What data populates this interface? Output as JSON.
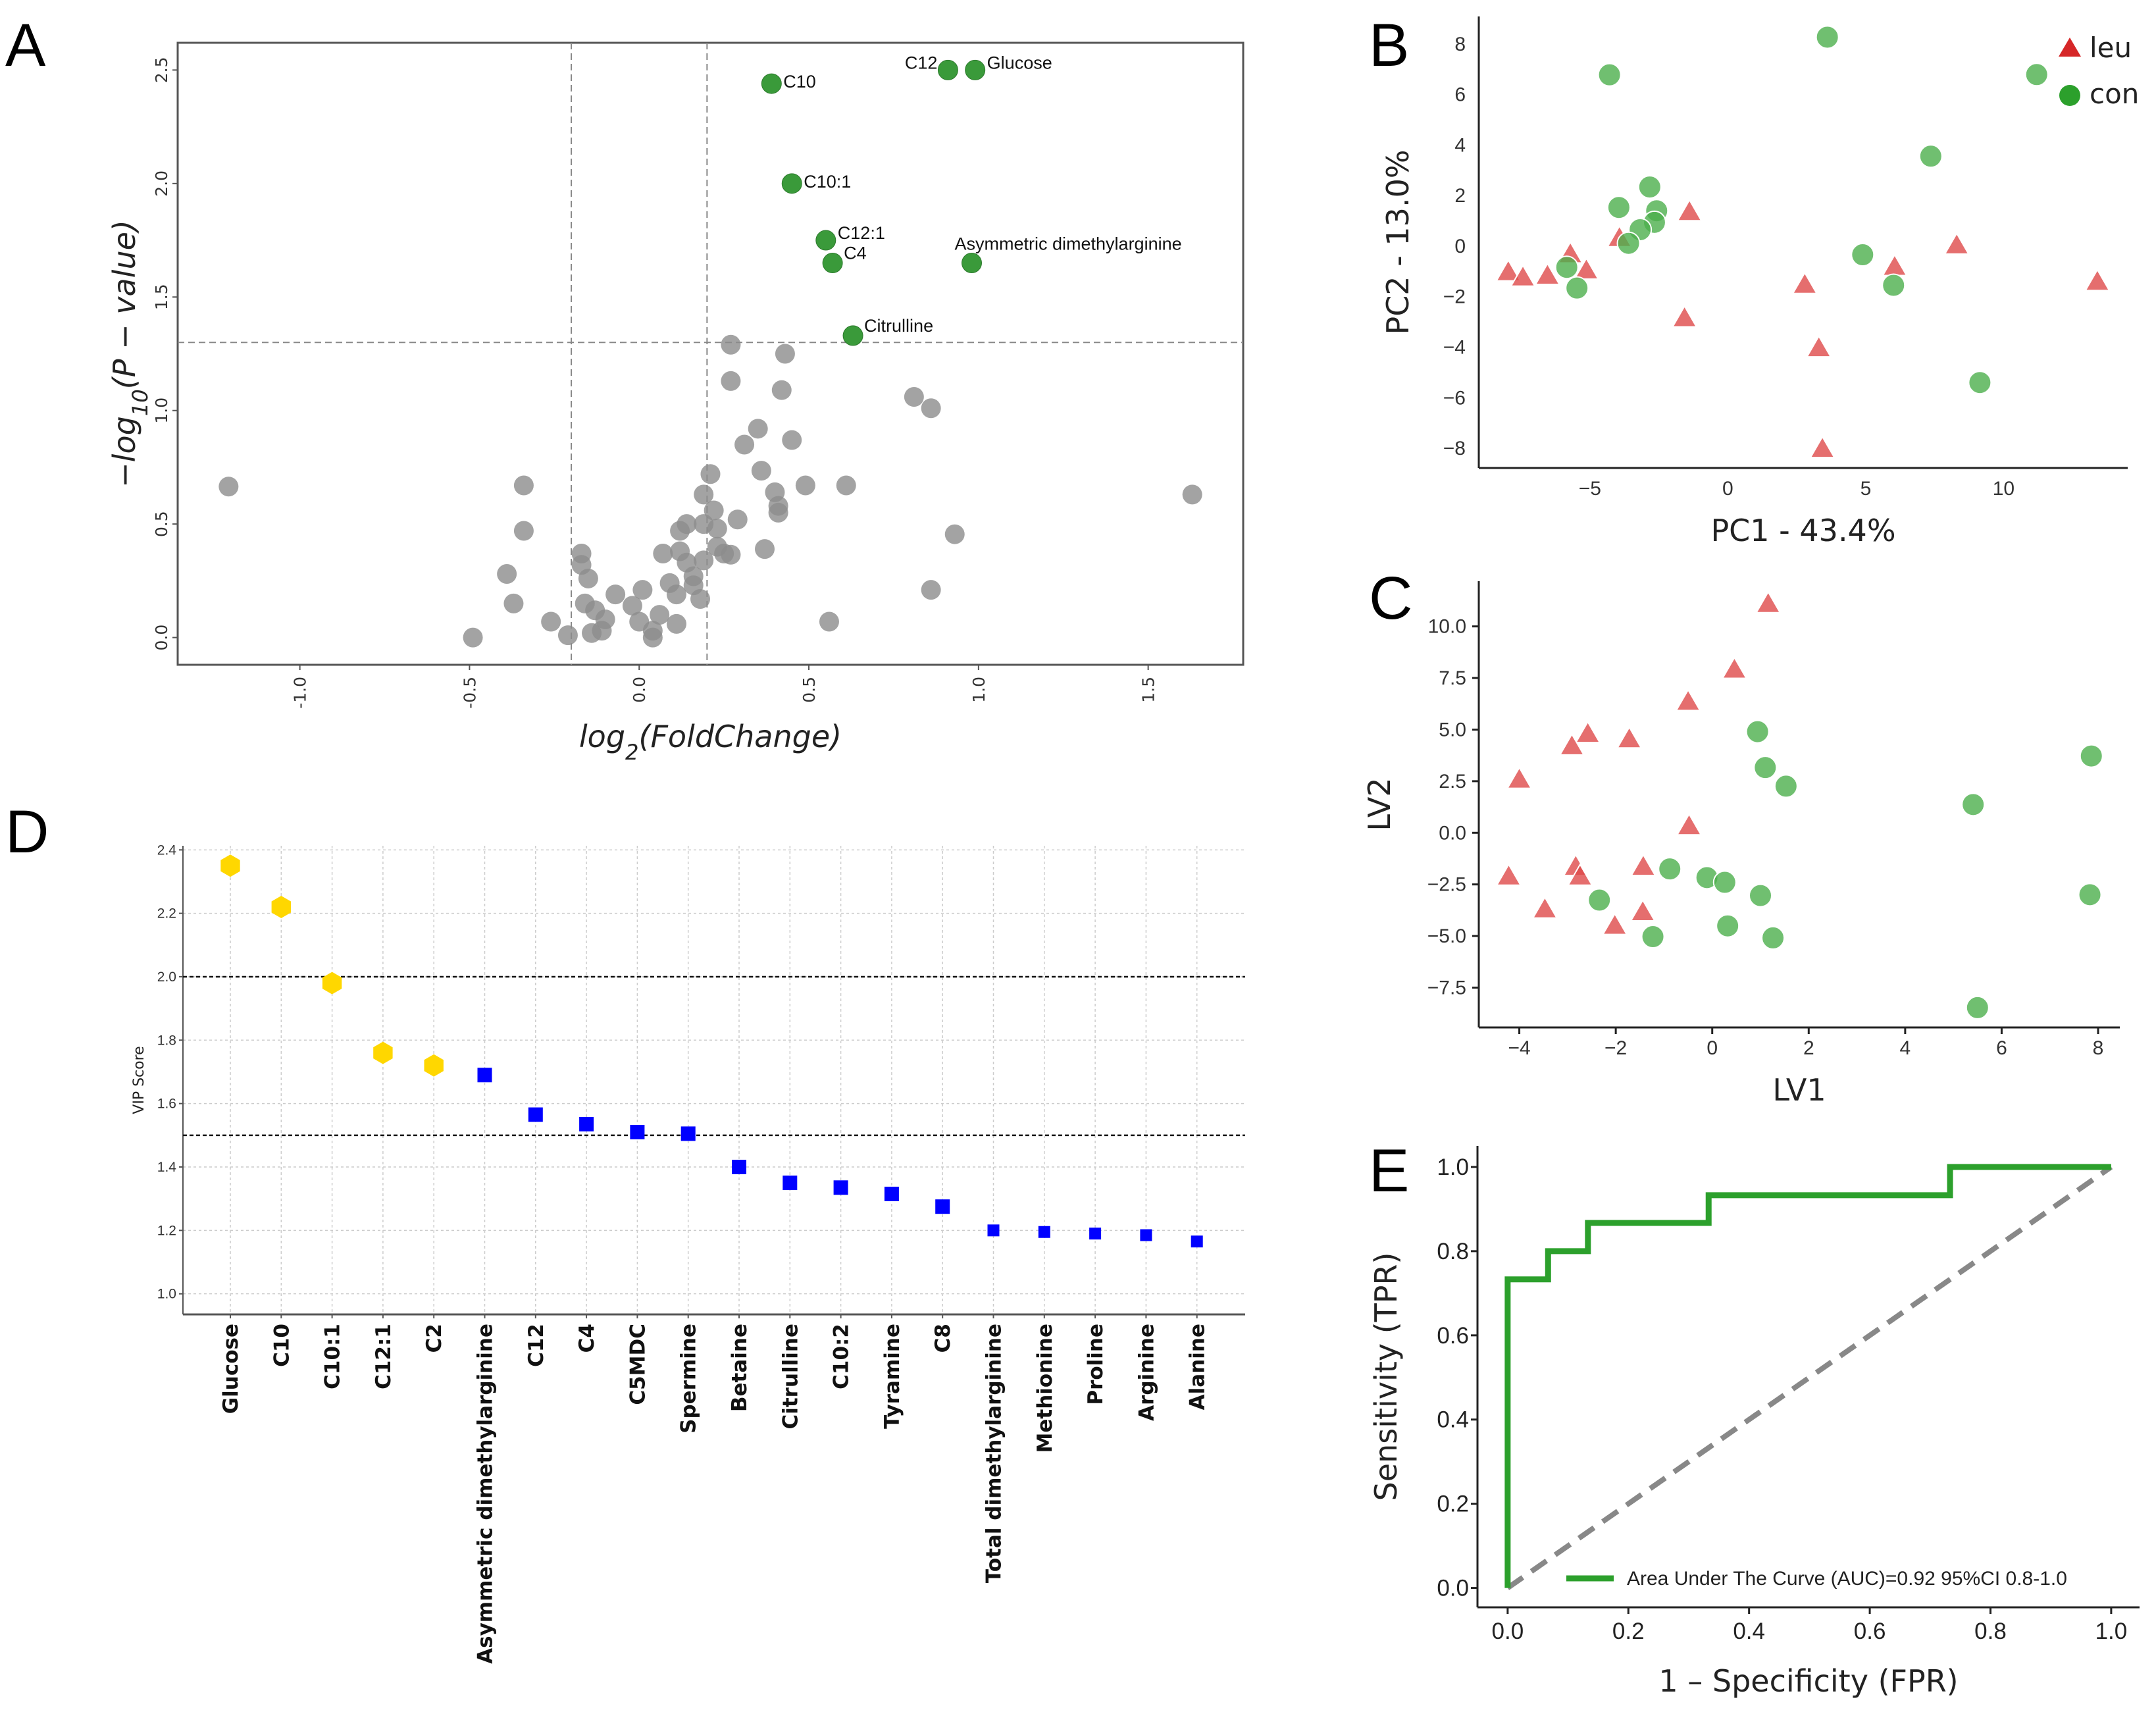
{
  "panel_labels": [
    "A",
    "B",
    "C",
    "D",
    "E"
  ],
  "chart_data": [
    {
      "panel": "A",
      "type": "scatter",
      "xlabel": {
        "base": "log",
        "sub": "2",
        "rest": "(FoldChange)"
      },
      "ylabel": {
        "base": "−log",
        "sub": "10",
        "rest": "(P − value)"
      },
      "xlim": [
        -1.36,
        1.78
      ],
      "ylim": [
        -0.12,
        2.62
      ],
      "xticks": [
        "-1.0",
        "-0.5",
        "0.0",
        "0.5",
        "1.0",
        "1.5"
      ],
      "yticks": [
        "0.0",
        "0.5",
        "1.0",
        "1.5",
        "2.0",
        "2.5"
      ],
      "thresholds": {
        "x": [
          -0.2,
          0.2
        ],
        "y": 1.3
      },
      "colors": {
        "significant": "#3a9a3a",
        "nonsignificant": "#8c8c8c"
      },
      "significant": [
        {
          "label": "C10",
          "x": 0.39,
          "y": 2.44
        },
        {
          "label": "C12",
          "x": 0.91,
          "y": 2.5
        },
        {
          "label": "Glucose",
          "x": 0.99,
          "y": 2.5
        },
        {
          "label": "C10:1",
          "x": 0.45,
          "y": 2.0
        },
        {
          "label": "C12:1",
          "x": 0.55,
          "y": 1.75
        },
        {
          "label": "C4",
          "x": 0.57,
          "y": 1.65
        },
        {
          "label": "Asymmetric dimethylarginine",
          "x": 0.98,
          "y": 1.65
        },
        {
          "label": "Citrulline",
          "x": 0.63,
          "y": 1.33
        }
      ],
      "nonsignificant": [
        [
          -1.21,
          0.665
        ],
        [
          -0.34,
          0.67
        ],
        [
          -0.34,
          0.47
        ],
        [
          -0.39,
          0.28
        ],
        [
          -0.37,
          0.15
        ],
        [
          -0.49,
          0.0
        ],
        [
          -0.26,
          0.07
        ],
        [
          -0.21,
          0.01
        ],
        [
          -0.17,
          0.37
        ],
        [
          -0.17,
          0.32
        ],
        [
          -0.15,
          0.26
        ],
        [
          -0.16,
          0.15
        ],
        [
          -0.13,
          0.12
        ],
        [
          -0.14,
          0.02
        ],
        [
          -0.11,
          0.03
        ],
        [
          -0.1,
          0.08
        ],
        [
          -0.07,
          0.19
        ],
        [
          -0.02,
          0.14
        ],
        [
          0.01,
          0.21
        ],
        [
          0.0,
          0.07
        ],
        [
          0.04,
          0.03
        ],
        [
          0.04,
          0.0
        ],
        [
          0.06,
          0.1
        ],
        [
          0.07,
          0.37
        ],
        [
          0.09,
          0.24
        ],
        [
          0.11,
          0.19
        ],
        [
          0.11,
          0.06
        ],
        [
          0.12,
          0.47
        ],
        [
          0.14,
          0.5
        ],
        [
          0.12,
          0.38
        ],
        [
          0.14,
          0.33
        ],
        [
          0.16,
          0.27
        ],
        [
          0.16,
          0.23
        ],
        [
          0.18,
          0.17
        ],
        [
          0.19,
          0.34
        ],
        [
          0.19,
          0.5
        ],
        [
          0.19,
          0.63
        ],
        [
          0.21,
          0.72
        ],
        [
          0.22,
          0.56
        ],
        [
          0.23,
          0.48
        ],
        [
          0.23,
          0.4
        ],
        [
          0.25,
          0.37
        ],
        [
          0.27,
          0.365
        ],
        [
          0.29,
          0.52
        ],
        [
          0.27,
          1.29
        ],
        [
          0.27,
          1.13
        ],
        [
          0.31,
          0.85
        ],
        [
          0.35,
          0.92
        ],
        [
          0.36,
          0.735
        ],
        [
          0.37,
          0.39
        ],
        [
          0.4,
          0.64
        ],
        [
          0.41,
          0.58
        ],
        [
          0.41,
          0.55
        ],
        [
          0.42,
          1.09
        ],
        [
          0.43,
          1.25
        ],
        [
          0.45,
          0.87
        ],
        [
          0.49,
          0.67
        ],
        [
          0.56,
          0.07
        ],
        [
          0.61,
          0.67
        ],
        [
          0.81,
          1.06
        ],
        [
          0.86,
          1.01
        ],
        [
          0.86,
          0.21
        ],
        [
          0.93,
          0.455
        ],
        [
          1.63,
          0.63
        ]
      ]
    },
    {
      "panel": "B",
      "type": "scatter",
      "xlabel": "PC1 - 43.4%",
      "ylabel": "PC2 - 13.0%",
      "xlim": [
        -9.03,
        14.5
      ],
      "ylim": [
        -8.78,
        9.09
      ],
      "xticks": [
        "-5",
        "0",
        "5",
        "10"
      ],
      "yticks": [
        "-8",
        "-6",
        "-4",
        "-2",
        "0",
        "2",
        "4",
        "6",
        "8"
      ],
      "legend": {
        "position": "top-right",
        "entries": [
          {
            "name": "leu",
            "marker": "triangle",
            "color": "#d62728"
          },
          {
            "name": "con",
            "marker": "circle",
            "color": "#2ca02c"
          }
        ]
      },
      "series": [
        {
          "name": "leu",
          "points": [
            [
              -7.96,
              -1.05
            ],
            [
              -7.43,
              -1.26
            ],
            [
              -6.54,
              -1.19
            ],
            [
              -5.71,
              -0.34
            ],
            [
              -5.13,
              -0.98
            ],
            [
              -3.93,
              0.3
            ],
            [
              -1.39,
              1.33
            ],
            [
              -1.57,
              -2.87
            ],
            [
              2.79,
              -1.55
            ],
            [
              3.3,
              -4.06
            ],
            [
              3.43,
              -8.04
            ],
            [
              6.05,
              -0.84
            ],
            [
              8.3,
              0.01
            ],
            [
              13.4,
              -1.43
            ]
          ]
        },
        {
          "name": "con",
          "points": [
            [
              -4.29,
              6.78
            ],
            [
              3.61,
              8.27
            ],
            [
              11.2,
              6.79
            ],
            [
              7.36,
              3.56
            ],
            [
              -2.83,
              2.34
            ],
            [
              -3.95,
              1.53
            ],
            [
              -2.58,
              1.4
            ],
            [
              -2.66,
              0.94
            ],
            [
              -3.18,
              0.65
            ],
            [
              -3.6,
              0.11
            ],
            [
              -5.84,
              -0.84
            ],
            [
              -5.47,
              -1.66
            ],
            [
              4.89,
              -0.34
            ],
            [
              6.01,
              -1.55
            ],
            [
              9.14,
              -5.4
            ]
          ]
        }
      ]
    },
    {
      "panel": "C",
      "type": "scatter",
      "xlabel": "LV1",
      "ylabel": "LV2",
      "xlim": [
        -4.84,
        8.45
      ],
      "ylim": [
        -9.43,
        12.19
      ],
      "xticks": [
        "-4",
        "-2",
        "0",
        "2",
        "4",
        "6",
        "8"
      ],
      "yticks": [
        "-7.5",
        "-5.0",
        "-2.5",
        "0.0",
        "2.5",
        "5.0",
        "7.5",
        "10.0"
      ],
      "series": [
        {
          "name": "leu",
          "points": [
            [
              1.16,
              11.06
            ],
            [
              0.46,
              7.88
            ],
            [
              -0.5,
              6.32
            ],
            [
              -2.58,
              4.77
            ],
            [
              -2.91,
              4.17
            ],
            [
              -1.72,
              4.51
            ],
            [
              -4.0,
              2.55
            ],
            [
              -0.48,
              0.3
            ],
            [
              -4.22,
              -2.14
            ],
            [
              -2.83,
              -1.67
            ],
            [
              -2.74,
              -2.14
            ],
            [
              -1.43,
              -1.67
            ],
            [
              -3.47,
              -3.73
            ],
            [
              -1.44,
              -3.87
            ],
            [
              -2.02,
              -4.53
            ]
          ]
        },
        {
          "name": "con",
          "points": [
            [
              0.94,
              4.9
            ],
            [
              1.1,
              3.16
            ],
            [
              1.53,
              2.26
            ],
            [
              7.86,
              3.72
            ],
            [
              5.41,
              1.37
            ],
            [
              -0.88,
              -1.75
            ],
            [
              -0.11,
              -2.17
            ],
            [
              0.26,
              -2.4
            ],
            [
              1.0,
              -3.04
            ],
            [
              -2.34,
              -3.26
            ],
            [
              -1.23,
              -5.03
            ],
            [
              0.32,
              -4.51
            ],
            [
              1.26,
              -5.09
            ],
            [
              7.83,
              -3.0
            ],
            [
              5.5,
              -8.47
            ]
          ]
        }
      ]
    },
    {
      "panel": "D",
      "type": "scatter",
      "ylabel": "VIP Score",
      "ylim": [
        0.935,
        2.413
      ],
      "yticks": [
        "1.0",
        "1.2",
        "1.4",
        "1.6",
        "1.8",
        "2.0",
        "2.2",
        "2.4"
      ],
      "thresholds": [
        2.0,
        1.5
      ],
      "grid": true,
      "colors": {
        "high": "#ffd700",
        "other": "#0000ff"
      },
      "categories": [
        "Glucose",
        "C10",
        "C10:1",
        "C12:1",
        "C2",
        "Asymmetric dimethylarginine",
        "C12",
        "C4",
        "C5MDC",
        "Spermine",
        "Betaine",
        "Citrulline",
        "C10:2",
        "Tyramine",
        "C8",
        "Total dimethylarginine",
        "Methionine",
        "Proline",
        "Arginine",
        "Alanine"
      ],
      "values": [
        2.35,
        2.22,
        1.98,
        1.76,
        1.72,
        1.69,
        1.565,
        1.535,
        1.51,
        1.505,
        1.4,
        1.35,
        1.335,
        1.315,
        1.275,
        1.2,
        1.195,
        1.19,
        1.185,
        1.165
      ],
      "markers": [
        "hexagon",
        "hexagon",
        "hexagon",
        "hexagon",
        "hexagon",
        "square",
        "square",
        "square",
        "square",
        "square",
        "square",
        "square",
        "square",
        "square",
        "square",
        "square",
        "square",
        "square",
        "square",
        "square"
      ]
    },
    {
      "panel": "E",
      "type": "line",
      "xlabel": "1 – Specificity (FPR)",
      "ylabel": "Sensitivity (TPR)",
      "xlim": [
        -0.05,
        1.047
      ],
      "ylim": [
        -0.046,
        1.05
      ],
      "xticks": [
        "0.0",
        "0.2",
        "0.4",
        "0.6",
        "0.8",
        "1.0"
      ],
      "yticks": [
        "0.0",
        "0.2",
        "0.4",
        "0.6",
        "0.8",
        "1.0"
      ],
      "legend": {
        "position": "bottom-right",
        "entries": [
          {
            "name": "Area Under The Curve (AUC)=0.92 95%CI 0.8-1.0",
            "color": "#2ca02c"
          }
        ]
      },
      "series": [
        {
          "name": "Area Under The Curve (AUC)=0.92 95%CI 0.8-1.0",
          "x": [
            0,
            0,
            0.067,
            0.067,
            0.133,
            0.133,
            0.333,
            0.333,
            0.733,
            0.733,
            1.0
          ],
          "y": [
            0,
            0.733,
            0.733,
            0.8,
            0.8,
            0.867,
            0.867,
            0.933,
            0.933,
            1.0,
            1.0
          ]
        }
      ],
      "reference_line": {
        "x": [
          0,
          1
        ],
        "y": [
          0,
          1
        ],
        "color": "#888888",
        "style": "dashed"
      }
    }
  ]
}
